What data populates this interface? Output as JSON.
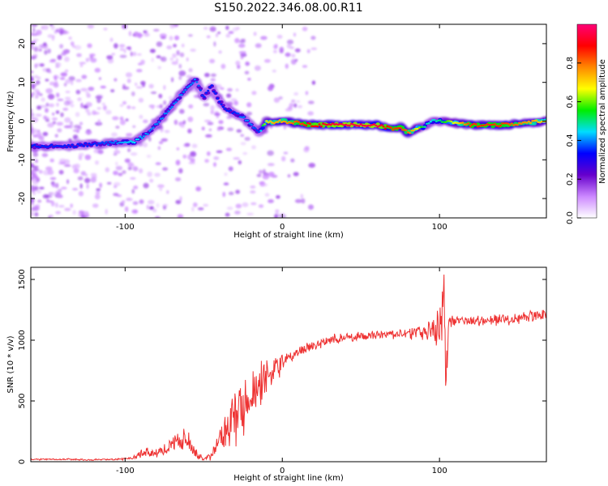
{
  "title": "S150.2022.346.08.00.R11",
  "chart_data": [
    {
      "type": "heatmap",
      "xlabel": "Height of straight line (km)",
      "ylabel": "Frequency (Hz)",
      "xlim": [
        -160,
        168
      ],
      "ylim": [
        -25,
        25
      ],
      "xticks": [
        -100,
        0,
        100
      ],
      "yticks": [
        -20,
        -10,
        0,
        10,
        20
      ],
      "colorbar": {
        "label": "Normalized spectral amplitude",
        "range": [
          0,
          1
        ],
        "ticks": [
          "0.0",
          "0.2",
          "0.4",
          "0.6",
          "0.8"
        ],
        "colors": [
          "#ffffff",
          "#cc88ff",
          "#6600cc",
          "#0000ff",
          "#00ddff",
          "#00ee00",
          "#ffff00",
          "#ff8800",
          "#ff0000",
          "#ff0077"
        ]
      },
      "ridge": {
        "x": [
          -160,
          -140,
          -120,
          -105,
          -95,
          -85,
          -78,
          -70,
          -62,
          -55,
          -50,
          -45,
          -40,
          -35,
          -30,
          -25,
          -20,
          -15,
          -10,
          -5,
          0,
          20,
          40,
          60,
          70,
          75,
          80,
          85,
          90,
          95,
          100,
          120,
          140,
          168
        ],
        "freq": [
          -6.5,
          -6.5,
          -6,
          -5.5,
          -5.5,
          -3,
          0,
          4,
          8,
          11,
          6,
          9,
          5,
          3,
          2,
          1,
          -1,
          -3,
          0,
          -0.5,
          0,
          -1,
          -1,
          -1,
          -2,
          -1.5,
          -3,
          -2,
          -1.5,
          0,
          0,
          -1,
          -1,
          0
        ],
        "amplitude": [
          0.35,
          0.35,
          0.35,
          0.4,
          0.45,
          0.4,
          0.4,
          0.4,
          0.4,
          0.4,
          0.35,
          0.35,
          0.35,
          0.35,
          0.35,
          0.4,
          0.4,
          0.35,
          0.7,
          0.75,
          0.75,
          0.9,
          0.95,
          0.95,
          0.85,
          0.85,
          0.8,
          0.7,
          0.5,
          0.45,
          0.5,
          0.85,
          0.85,
          0.7
        ]
      }
    },
    {
      "type": "line",
      "xlabel": "Height of straight line (km)",
      "ylabel": "SNR (10 * v/v)",
      "xlim": [
        -160,
        168
      ],
      "ylim": [
        0,
        1600
      ],
      "xticks": [
        -100,
        0,
        100
      ],
      "yticks": [
        0,
        500,
        1000,
        1500
      ],
      "color": "#ee3333",
      "series": [
        {
          "x": [
            -160,
            -140,
            -120,
            -105,
            -95,
            -88,
            -80,
            -70,
            -62,
            -55,
            -50,
            -45,
            -40,
            -35,
            -30,
            -25,
            -20,
            -15,
            -10,
            -5,
            0,
            10,
            20,
            30,
            40,
            50,
            60,
            70,
            80,
            90,
            95,
            100,
            103,
            104,
            106,
            110,
            120,
            130,
            140,
            150,
            160,
            168
          ],
          "y": [
            20,
            20,
            15,
            20,
            30,
            80,
            60,
            150,
            180,
            80,
            20,
            50,
            150,
            300,
            400,
            480,
            550,
            620,
            700,
            760,
            820,
            900,
            960,
            1000,
            1020,
            1030,
            1040,
            1050,
            1060,
            1070,
            1080,
            1100,
            1450,
            700,
            1150,
            1160,
            1160,
            1170,
            1180,
            1180,
            1200,
            1220
          ],
          "jitter": [
            5,
            5,
            5,
            5,
            10,
            30,
            30,
            60,
            80,
            40,
            10,
            30,
            100,
            150,
            200,
            180,
            160,
            140,
            120,
            90,
            60,
            40,
            30,
            30,
            30,
            30,
            30,
            30,
            30,
            60,
            100,
            150,
            200,
            150,
            40,
            30,
            30,
            30,
            40,
            40,
            40,
            40
          ]
        }
      ]
    }
  ]
}
